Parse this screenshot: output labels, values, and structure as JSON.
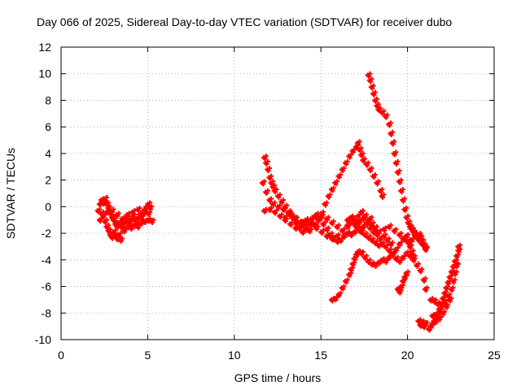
{
  "chart_data": {
    "type": "scatter",
    "title": "Day 066 of 2025, Sidereal Day-to-day VTEC variation (SDTVAR) for receiver dubo",
    "xlabel": "GPS time / hours",
    "ylabel": "SDTVAR / TECUs",
    "xlim": [
      0,
      25
    ],
    "ylim": [
      -10,
      12
    ],
    "xticks": [
      0,
      5,
      10,
      15,
      20,
      25
    ],
    "yticks": [
      -10,
      -8,
      -6,
      -4,
      -2,
      0,
      2,
      4,
      6,
      8,
      10,
      12
    ],
    "grid": true,
    "marker": "+",
    "color": "#ff0000",
    "series": [
      {
        "points": [
          [
            2.1,
            -0.3
          ],
          [
            2.2,
            0.2
          ],
          [
            2.3,
            0.5
          ],
          [
            2.4,
            0.3
          ],
          [
            2.5,
            0.6
          ],
          [
            2.6,
            0.2
          ],
          [
            2.7,
            -0.1
          ],
          [
            2.8,
            -0.5
          ],
          [
            2.9,
            -0.8
          ],
          [
            3.0,
            -1.0
          ],
          [
            3.1,
            -1.3
          ],
          [
            3.2,
            -1.5
          ],
          [
            3.3,
            -1.2
          ],
          [
            3.4,
            -1.4
          ],
          [
            3.5,
            -1.6
          ],
          [
            3.6,
            -1.2
          ],
          [
            3.7,
            -0.9
          ],
          [
            3.8,
            -1.1
          ],
          [
            3.9,
            -1.4
          ],
          [
            4.0,
            -1.0
          ],
          [
            4.1,
            -0.7
          ],
          [
            4.2,
            -1.0
          ],
          [
            4.3,
            -1.3
          ],
          [
            4.4,
            -0.9
          ],
          [
            4.5,
            -0.6
          ],
          [
            4.6,
            -0.8
          ],
          [
            4.7,
            -0.4
          ],
          [
            4.8,
            -0.2
          ],
          [
            4.9,
            0.0
          ],
          [
            5.0,
            0.2
          ],
          [
            5.1,
            -0.1
          ],
          [
            2.2,
            -1.0
          ],
          [
            2.4,
            -0.7
          ],
          [
            2.5,
            -1.1
          ],
          [
            2.6,
            -1.5
          ],
          [
            2.7,
            -1.8
          ],
          [
            2.8,
            -2.1
          ],
          [
            2.9,
            -2.3
          ],
          [
            3.0,
            -1.9
          ],
          [
            3.1,
            -2.2
          ],
          [
            3.2,
            -2.4
          ],
          [
            3.3,
            -2.1
          ],
          [
            3.4,
            -2.5
          ],
          [
            3.6,
            -1.8
          ],
          [
            3.8,
            -1.5
          ],
          [
            4.0,
            -1.6
          ],
          [
            4.2,
            -1.4
          ],
          [
            4.4,
            -1.5
          ],
          [
            4.6,
            -1.2
          ],
          [
            4.8,
            -1.1
          ],
          [
            5.0,
            -1.0
          ],
          [
            5.2,
            -1.1
          ],
          [
            2.3,
            -0.5
          ],
          [
            2.6,
            -0.4
          ],
          [
            2.9,
            -0.3
          ],
          [
            3.2,
            -0.6
          ],
          [
            3.5,
            -0.9
          ],
          [
            3.8,
            -0.6
          ],
          [
            4.1,
            -0.4
          ],
          [
            4.4,
            -0.2
          ],
          [
            4.7,
            -0.5
          ],
          [
            5.0,
            -0.5
          ]
        ]
      },
      {
        "points": [
          [
            11.7,
            3.7
          ],
          [
            11.8,
            3.3
          ],
          [
            11.9,
            2.8
          ],
          [
            12.0,
            2.2
          ],
          [
            12.1,
            1.8
          ],
          [
            12.2,
            1.5
          ],
          [
            12.3,
            1.2
          ],
          [
            12.5,
            0.8
          ],
          [
            12.7,
            0.4
          ],
          [
            12.9,
            0.0
          ],
          [
            13.1,
            -0.4
          ],
          [
            13.3,
            -0.8
          ],
          [
            13.5,
            -1.2
          ],
          [
            13.7,
            -1.6
          ],
          [
            13.9,
            -1.9
          ],
          [
            14.1,
            -1.7
          ],
          [
            14.3,
            -1.3
          ],
          [
            14.5,
            -0.8
          ],
          [
            14.7,
            -0.6
          ],
          [
            14.9,
            -0.9
          ],
          [
            15.1,
            -1.3
          ],
          [
            15.3,
            -1.7
          ],
          [
            15.5,
            -2.1
          ],
          [
            15.7,
            -2.4
          ],
          [
            15.9,
            -2.6
          ],
          [
            16.1,
            -2.5
          ],
          [
            16.3,
            -2.2
          ],
          [
            16.5,
            -2.0
          ],
          [
            16.7,
            -2.1
          ],
          [
            16.9,
            -1.9
          ],
          [
            17.1,
            -1.7
          ],
          [
            17.3,
            -1.9
          ],
          [
            17.5,
            -2.1
          ],
          [
            17.7,
            -2.3
          ],
          [
            17.9,
            -2.5
          ],
          [
            18.1,
            -2.7
          ],
          [
            18.3,
            -2.9
          ],
          [
            18.5,
            -2.8
          ],
          [
            18.7,
            -3.0
          ],
          [
            18.9,
            -3.3
          ],
          [
            19.1,
            -3.6
          ],
          [
            19.3,
            -3.9
          ],
          [
            19.5,
            -4.1
          ],
          [
            19.7,
            -3.8
          ],
          [
            19.9,
            -3.5
          ],
          [
            20.1,
            -3.7
          ],
          [
            20.3,
            -4.0
          ],
          [
            20.5,
            -4.4
          ],
          [
            20.7,
            -4.8
          ],
          [
            20.9,
            -5.5
          ],
          [
            21.0,
            -6.2
          ],
          [
            11.6,
            1.8
          ],
          [
            11.8,
            1.1
          ],
          [
            12.0,
            0.5
          ],
          [
            12.2,
            0.2
          ],
          [
            12.5,
            0.0
          ],
          [
            12.8,
            -0.2
          ],
          [
            13.1,
            -0.5
          ],
          [
            13.4,
            -0.9
          ],
          [
            13.7,
            -1.2
          ],
          [
            14.0,
            -1.4
          ],
          [
            14.3,
            -1.8
          ],
          [
            14.6,
            -1.4
          ],
          [
            14.8,
            -1.0
          ],
          [
            15.0,
            -0.5
          ],
          [
            15.2,
            0.2
          ],
          [
            15.4,
            0.8
          ],
          [
            15.6,
            1.3
          ],
          [
            15.8,
            1.8
          ],
          [
            16.0,
            2.3
          ],
          [
            16.2,
            2.8
          ],
          [
            16.4,
            3.3
          ],
          [
            16.6,
            3.8
          ],
          [
            16.8,
            4.2
          ],
          [
            17.0,
            4.5
          ],
          [
            17.1,
            4.8
          ],
          [
            17.2,
            4.3
          ],
          [
            17.3,
            3.9
          ],
          [
            17.4,
            3.5
          ],
          [
            17.6,
            3.2
          ],
          [
            17.8,
            2.8
          ],
          [
            18.0,
            2.3
          ],
          [
            18.2,
            1.8
          ],
          [
            18.4,
            1.2
          ],
          [
            18.5,
            0.8
          ],
          [
            11.7,
            -0.3
          ],
          [
            12.0,
            -0.2
          ],
          [
            12.3,
            -0.4
          ],
          [
            12.6,
            -0.7
          ],
          [
            12.9,
            -1.0
          ],
          [
            13.2,
            -1.3
          ],
          [
            13.5,
            -1.6
          ],
          [
            13.8,
            -1.5
          ],
          [
            14.1,
            -1.2
          ],
          [
            14.4,
            -1.0
          ],
          [
            14.7,
            -0.8
          ],
          [
            15.0,
            -0.7
          ],
          [
            15.3,
            -0.9
          ],
          [
            15.6,
            -1.2
          ],
          [
            15.9,
            -1.5
          ],
          [
            16.2,
            -1.8
          ],
          [
            16.5,
            -1.5
          ],
          [
            16.8,
            -1.2
          ],
          [
            17.0,
            -1.4
          ],
          [
            17.2,
            -1.1
          ],
          [
            17.4,
            -0.9
          ],
          [
            17.6,
            -1.3
          ],
          [
            17.8,
            -1.6
          ],
          [
            18.0,
            -1.9
          ],
          [
            18.2,
            -2.1
          ],
          [
            18.4,
            -2.4
          ],
          [
            18.6,
            -2.2
          ],
          [
            18.8,
            -2.5
          ],
          [
            19.0,
            -2.8
          ],
          [
            12.9,
            -0.8
          ],
          [
            13.2,
            -0.6
          ],
          [
            13.5,
            -0.9
          ],
          [
            13.8,
            -1.2
          ],
          [
            14.1,
            -1.0
          ],
          [
            14.4,
            -1.3
          ],
          [
            14.7,
            -1.6
          ],
          [
            15.0,
            -1.9
          ],
          [
            15.3,
            -2.2
          ],
          [
            15.6,
            -2.4
          ],
          [
            15.9,
            -2.2
          ],
          [
            16.2,
            -1.8
          ],
          [
            16.5,
            -1.4
          ],
          [
            16.8,
            -1.0
          ],
          [
            17.1,
            -0.7
          ],
          [
            17.3,
            -0.4
          ],
          [
            17.5,
            -0.7
          ],
          [
            17.7,
            -1.0
          ],
          [
            17.9,
            -1.3
          ],
          [
            18.1,
            -1.6
          ],
          [
            18.3,
            -1.9
          ],
          [
            18.6,
            -1.7
          ],
          [
            18.9,
            -1.5
          ],
          [
            19.2,
            -1.8
          ],
          [
            19.5,
            -2.1
          ],
          [
            19.8,
            -2.4
          ],
          [
            20.0,
            -2.7
          ],
          [
            20.2,
            -2.5
          ],
          [
            20.4,
            -2.2
          ],
          [
            20.6,
            -2.5
          ],
          [
            20.8,
            -2.8
          ],
          [
            21.0,
            -3.1
          ],
          [
            15.6,
            -7.0
          ],
          [
            15.8,
            -6.9
          ],
          [
            16.0,
            -6.6
          ],
          [
            16.2,
            -6.1
          ],
          [
            16.4,
            -5.6
          ],
          [
            16.6,
            -5.1
          ],
          [
            16.7,
            -4.7
          ],
          [
            16.8,
            -4.3
          ],
          [
            16.9,
            -3.9
          ],
          [
            17.0,
            -3.6
          ],
          [
            17.1,
            -3.4
          ],
          [
            17.3,
            -3.5
          ],
          [
            17.5,
            -3.8
          ],
          [
            17.7,
            -4.1
          ],
          [
            17.9,
            -4.3
          ],
          [
            18.1,
            -4.4
          ],
          [
            18.3,
            -4.2
          ],
          [
            18.5,
            -4.0
          ],
          [
            18.7,
            -4.1
          ],
          [
            18.9,
            -3.8
          ],
          [
            19.1,
            -3.5
          ],
          [
            19.3,
            -3.2
          ],
          [
            19.5,
            -2.8
          ],
          [
            19.7,
            -2.4
          ],
          [
            19.9,
            -2.2
          ],
          [
            20.0,
            -2.6
          ],
          [
            20.1,
            -3.0
          ],
          [
            20.2,
            -3.4
          ],
          [
            20.3,
            -3.8
          ],
          [
            19.4,
            -6.2
          ],
          [
            19.5,
            -6.4
          ],
          [
            19.6,
            -6.0
          ],
          [
            19.7,
            -5.6
          ],
          [
            19.8,
            -5.3
          ],
          [
            19.9,
            -5.0
          ],
          [
            16.5,
            -1.0
          ],
          [
            16.7,
            -0.8
          ],
          [
            16.9,
            -1.1
          ],
          [
            17.0,
            -1.5
          ],
          [
            17.2,
            -1.8
          ],
          [
            17.4,
            -1.5
          ],
          [
            17.6,
            -1.2
          ],
          [
            17.8,
            -0.9
          ],
          [
            17.7,
            9.9
          ],
          [
            17.8,
            9.5
          ],
          [
            17.9,
            9.0
          ],
          [
            18.0,
            8.5
          ],
          [
            18.1,
            8.0
          ],
          [
            18.2,
            7.6
          ],
          [
            18.3,
            7.3
          ],
          [
            18.5,
            7.1
          ],
          [
            18.7,
            6.8
          ],
          [
            18.9,
            6.2
          ],
          [
            19.0,
            5.5
          ],
          [
            19.1,
            4.8
          ],
          [
            19.2,
            4.0
          ],
          [
            19.3,
            3.3
          ],
          [
            19.4,
            2.6
          ],
          [
            19.5,
            1.9
          ],
          [
            19.6,
            1.2
          ],
          [
            19.7,
            0.5
          ],
          [
            19.8,
            -0.2
          ],
          [
            19.9,
            -0.8
          ],
          [
            20.0,
            -1.2
          ],
          [
            20.1,
            -1.5
          ],
          [
            20.2,
            -1.7
          ],
          [
            20.3,
            -1.9
          ],
          [
            20.4,
            -2.1
          ],
          [
            20.5,
            -2.3
          ],
          [
            20.6,
            -2.1
          ],
          [
            20.7,
            -2.3
          ],
          [
            20.8,
            -2.6
          ],
          [
            20.9,
            -2.9
          ],
          [
            21.0,
            -3.2
          ],
          [
            20.6,
            -8.6
          ],
          [
            20.7,
            -8.9
          ],
          [
            20.8,
            -8.7
          ],
          [
            20.9,
            -9.0
          ],
          [
            21.0,
            -8.8
          ],
          [
            21.2,
            -9.2
          ],
          [
            21.3,
            -9.0
          ],
          [
            21.4,
            -8.8
          ],
          [
            21.5,
            -8.6
          ],
          [
            21.6,
            -8.3
          ],
          [
            21.7,
            -8.0
          ],
          [
            21.8,
            -7.7
          ],
          [
            21.9,
            -7.3
          ],
          [
            22.0,
            -6.9
          ],
          [
            22.1,
            -6.5
          ],
          [
            22.2,
            -6.1
          ],
          [
            22.3,
            -5.7
          ],
          [
            22.4,
            -5.3
          ],
          [
            22.5,
            -4.9
          ],
          [
            22.6,
            -4.5
          ],
          [
            22.7,
            -4.1
          ],
          [
            22.8,
            -3.7
          ],
          [
            22.9,
            -3.3
          ],
          [
            22.9,
            -3.0
          ],
          [
            21.3,
            -7.0
          ],
          [
            21.5,
            -7.1
          ],
          [
            21.7,
            -7.3
          ],
          [
            21.9,
            -7.6
          ],
          [
            22.1,
            -7.2
          ],
          [
            22.3,
            -6.7
          ],
          [
            22.5,
            -6.2
          ],
          [
            22.6,
            -5.6
          ],
          [
            22.7,
            -5.0
          ],
          [
            22.8,
            -4.4
          ],
          [
            21.4,
            -8.2
          ],
          [
            21.6,
            -8.6
          ],
          [
            21.8,
            -8.4
          ],
          [
            22.0,
            -8.0
          ],
          [
            22.2,
            -7.5
          ],
          [
            22.4,
            -7.0
          ]
        ]
      }
    ]
  }
}
